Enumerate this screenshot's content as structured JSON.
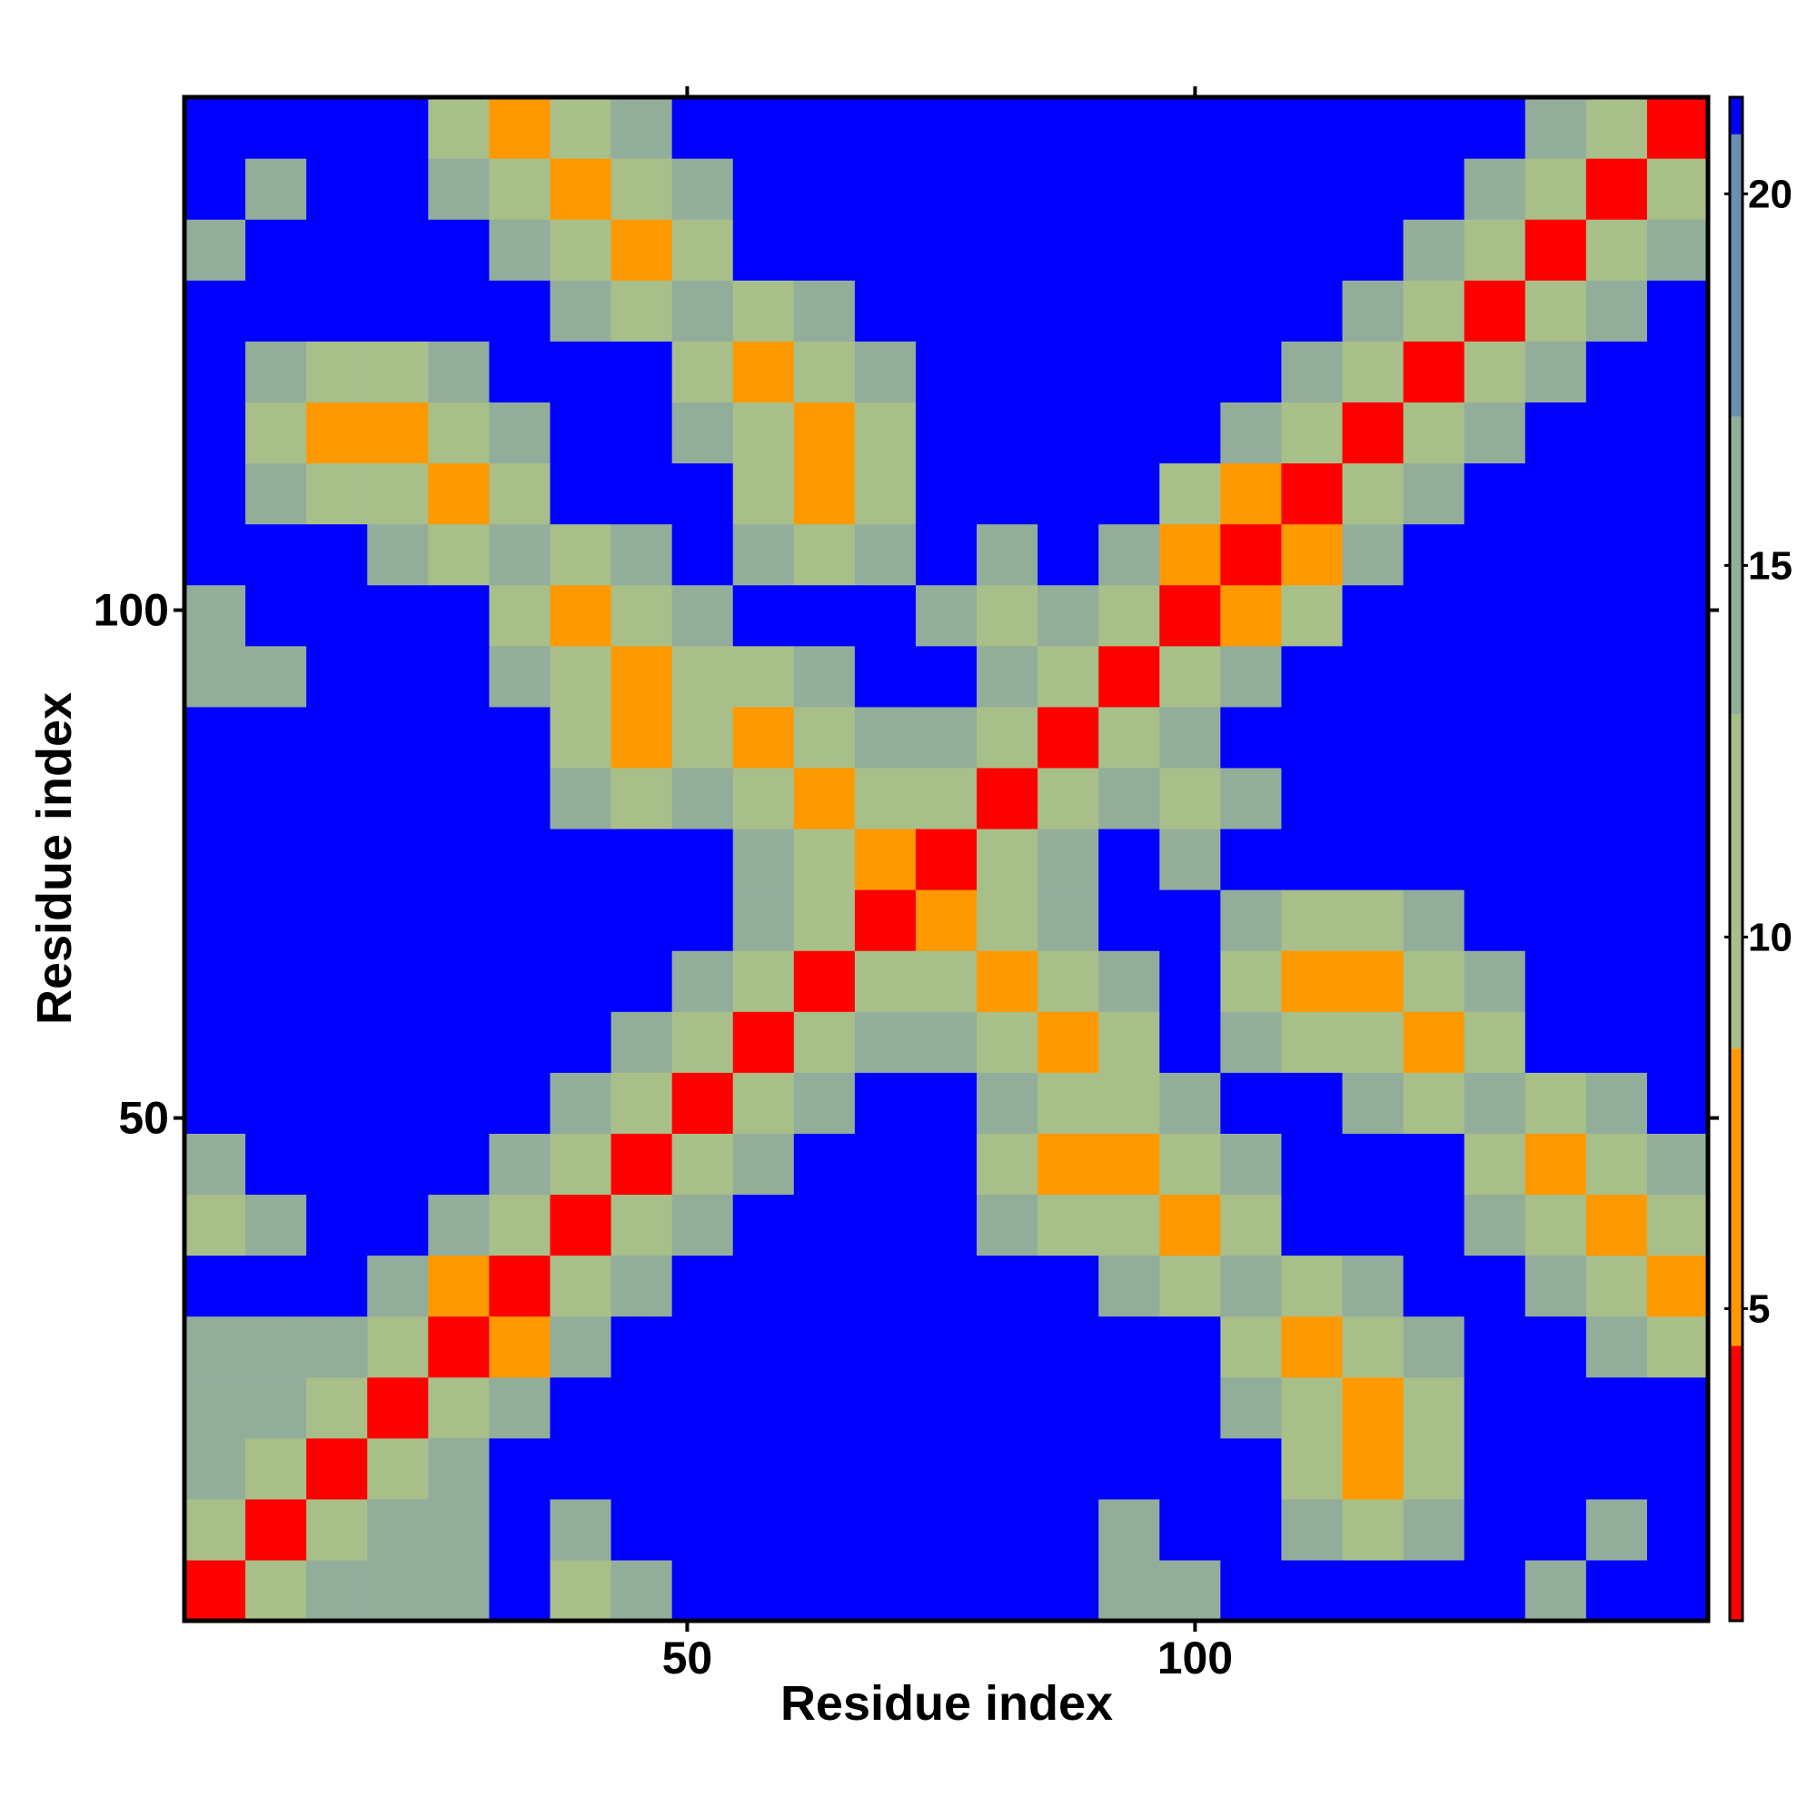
{
  "chart_data": {
    "type": "heatmap",
    "xlabel": "Residue index",
    "ylabel": "Residue index",
    "xlim": [
      0.5,
      150.5
    ],
    "ylim": [
      0.5,
      150.5
    ],
    "xticks": [
      50,
      100
    ],
    "yticks": [
      50,
      100
    ],
    "z": [
      [
        3,
        9,
        15,
        14,
        15,
        22,
        13,
        14,
        22,
        22,
        22,
        22,
        22,
        22,
        22,
        15,
        16,
        22,
        22,
        22,
        22,
        22,
        16,
        22,
        22
      ],
      [
        9,
        3,
        9,
        15,
        16,
        22,
        14,
        22,
        22,
        22,
        22,
        22,
        22,
        22,
        22,
        16,
        22,
        22,
        14,
        12,
        14,
        22,
        22,
        16,
        22
      ],
      [
        15,
        9,
        3,
        9,
        15,
        22,
        22,
        22,
        22,
        22,
        22,
        22,
        22,
        22,
        22,
        22,
        22,
        22,
        12,
        6,
        12,
        22,
        22,
        22,
        22
      ],
      [
        14,
        15,
        9,
        3,
        9,
        15,
        22,
        22,
        22,
        22,
        22,
        22,
        22,
        22,
        22,
        22,
        22,
        14,
        12,
        6,
        12,
        22,
        22,
        22,
        22
      ],
      [
        15,
        16,
        15,
        9,
        3,
        7,
        15,
        22,
        22,
        22,
        22,
        22,
        22,
        22,
        22,
        22,
        22,
        12,
        6,
        12,
        14,
        22,
        22,
        14,
        12
      ],
      [
        22,
        22,
        22,
        15,
        7,
        3,
        9,
        15,
        22,
        22,
        22,
        22,
        22,
        22,
        22,
        14,
        12,
        14,
        12,
        14,
        22,
        22,
        14,
        12,
        6
      ],
      [
        13,
        14,
        22,
        22,
        15,
        9,
        3,
        9,
        15,
        22,
        22,
        22,
        22,
        14,
        12,
        12,
        6,
        12,
        22,
        22,
        22,
        14,
        12,
        6,
        12
      ],
      [
        14,
        22,
        22,
        22,
        22,
        15,
        9,
        3,
        9,
        15,
        22,
        22,
        22,
        12,
        6,
        6,
        12,
        14,
        22,
        22,
        22,
        12,
        6,
        12,
        14
      ],
      [
        22,
        22,
        22,
        22,
        22,
        22,
        15,
        9,
        3,
        9,
        15,
        22,
        22,
        14,
        12,
        12,
        14,
        22,
        22,
        14,
        12,
        14,
        12,
        14,
        22
      ],
      [
        22,
        22,
        22,
        22,
        22,
        22,
        22,
        15,
        9,
        3,
        9,
        15,
        14,
        12,
        6,
        12,
        22,
        14,
        12,
        12,
        6,
        12,
        22,
        22,
        22
      ],
      [
        22,
        22,
        22,
        22,
        22,
        22,
        22,
        22,
        15,
        9,
        3,
        9,
        12,
        6,
        12,
        14,
        22,
        12,
        6,
        6,
        12,
        14,
        22,
        22,
        22
      ],
      [
        22,
        22,
        22,
        22,
        22,
        22,
        22,
        22,
        22,
        15,
        9,
        3,
        6,
        12,
        14,
        22,
        22,
        14,
        12,
        12,
        14,
        22,
        22,
        22,
        22
      ],
      [
        22,
        22,
        22,
        22,
        22,
        22,
        22,
        22,
        22,
        14,
        12,
        6,
        3,
        9,
        15,
        22,
        14,
        22,
        22,
        22,
        22,
        22,
        22,
        22,
        22
      ],
      [
        22,
        22,
        22,
        22,
        22,
        22,
        14,
        12,
        14,
        12,
        6,
        12,
        9,
        3,
        9,
        14,
        9,
        14,
        22,
        22,
        22,
        22,
        22,
        22,
        22
      ],
      [
        22,
        22,
        22,
        22,
        22,
        22,
        12,
        6,
        12,
        6,
        12,
        14,
        15,
        9,
        3,
        9,
        14,
        22,
        22,
        22,
        22,
        22,
        22,
        22,
        22
      ],
      [
        15,
        16,
        22,
        22,
        22,
        14,
        12,
        6,
        12,
        12,
        14,
        22,
        22,
        14,
        9,
        3,
        9,
        15,
        22,
        22,
        22,
        22,
        22,
        22,
        22
      ],
      [
        16,
        22,
        22,
        22,
        22,
        12,
        6,
        12,
        14,
        22,
        22,
        22,
        14,
        9,
        14,
        9,
        3,
        7,
        11,
        22,
        22,
        22,
        22,
        22,
        22
      ],
      [
        22,
        22,
        22,
        14,
        12,
        14,
        12,
        14,
        22,
        14,
        12,
        14,
        22,
        14,
        22,
        15,
        7,
        3,
        7,
        15,
        22,
        22,
        22,
        22,
        22
      ],
      [
        22,
        14,
        12,
        12,
        6,
        12,
        22,
        22,
        22,
        12,
        6,
        12,
        22,
        22,
        22,
        22,
        11,
        7,
        3,
        9,
        15,
        22,
        22,
        22,
        22
      ],
      [
        22,
        12,
        6,
        6,
        12,
        14,
        22,
        22,
        14,
        12,
        6,
        12,
        22,
        22,
        22,
        22,
        22,
        15,
        9,
        3,
        9,
        15,
        22,
        22,
        22
      ],
      [
        22,
        14,
        12,
        12,
        14,
        22,
        22,
        22,
        12,
        6,
        12,
        14,
        22,
        22,
        22,
        22,
        22,
        22,
        15,
        9,
        3,
        9,
        15,
        22,
        22
      ],
      [
        22,
        22,
        22,
        22,
        22,
        22,
        14,
        12,
        14,
        12,
        14,
        22,
        22,
        22,
        22,
        22,
        22,
        22,
        22,
        15,
        9,
        3,
        9,
        15,
        22
      ],
      [
        16,
        22,
        22,
        22,
        22,
        14,
        12,
        6,
        12,
        22,
        22,
        22,
        22,
        22,
        22,
        22,
        22,
        22,
        22,
        22,
        15,
        9,
        3,
        9,
        15
      ],
      [
        22,
        16,
        22,
        22,
        14,
        12,
        6,
        12,
        14,
        22,
        22,
        22,
        22,
        22,
        22,
        22,
        22,
        22,
        22,
        22,
        22,
        15,
        9,
        3,
        9
      ],
      [
        22,
        22,
        22,
        22,
        12,
        6,
        12,
        14,
        22,
        22,
        22,
        22,
        22,
        22,
        22,
        22,
        22,
        22,
        22,
        22,
        22,
        22,
        15,
        9,
        3
      ]
    ],
    "colorbar": {
      "lim": [
        0.8,
        21.3
      ],
      "ticks": [
        5,
        10,
        15,
        20
      ],
      "bands": [
        {
          "to": 4.5,
          "color": "#ff0000"
        },
        {
          "to": 8.5,
          "color": "#ff9900"
        },
        {
          "to": 13,
          "color": "#a8bf8a"
        },
        {
          "to": 17,
          "color": "#93ad9b"
        },
        {
          "to": 20.8,
          "color": "#6b8fb0"
        },
        {
          "to": 21.3,
          "color": "#0000ff"
        }
      ]
    }
  }
}
